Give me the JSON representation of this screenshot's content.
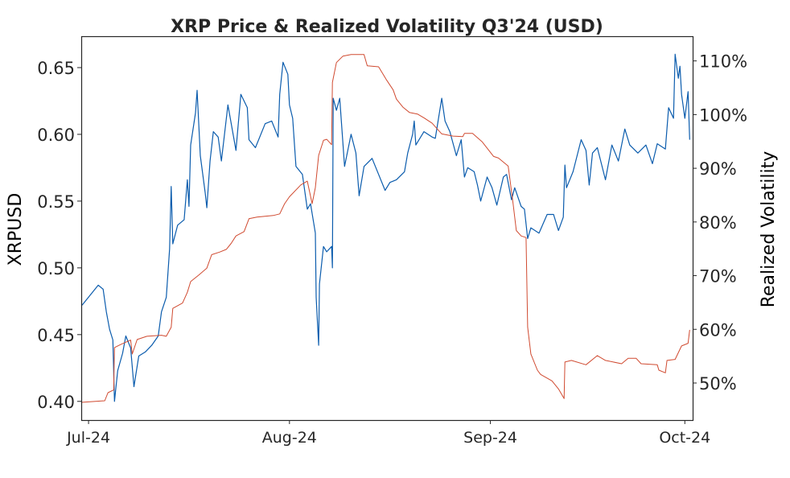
{
  "chart_data": {
    "type": "line",
    "title": "XRP Price & Realized Volatility Q3'24 (USD)",
    "ylabel": "XRPUSD",
    "y2label": "Realized Volatility",
    "xlim": [
      "2024-06-29T21:00",
      "2024-10-02T05:00"
    ],
    "ylim": [
      0.386,
      0.6735
    ],
    "y2lim": [
      43.1,
      114.6
    ],
    "grid": false,
    "x_ticks": [
      {
        "date": "2024-07-01T00:00",
        "label": "Jul-24"
      },
      {
        "date": "2024-08-01T00:00",
        "label": "Aug-24"
      },
      {
        "date": "2024-09-01T00:00",
        "label": "Sep-24"
      },
      {
        "date": "2024-10-01T00:00",
        "label": "Oct-24"
      }
    ],
    "y_ticks": [
      {
        "value": 0.4,
        "label": "0.40"
      },
      {
        "value": 0.45,
        "label": "0.45"
      },
      {
        "value": 0.5,
        "label": "0.50"
      },
      {
        "value": 0.55,
        "label": "0.55"
      },
      {
        "value": 0.6,
        "label": "0.60"
      },
      {
        "value": 0.65,
        "label": "0.65"
      }
    ],
    "y2_ticks": [
      {
        "value": 50,
        "label": "50%"
      },
      {
        "value": 60,
        "label": "60%"
      },
      {
        "value": 70,
        "label": "70%"
      },
      {
        "value": 80,
        "label": "80%"
      },
      {
        "value": 90,
        "label": "90%"
      },
      {
        "value": 100,
        "label": "100%"
      },
      {
        "value": 110,
        "label": "110%"
      }
    ],
    "series": [
      {
        "axis": "left",
        "color": "#0b5cad",
        "points": [
          [
            "2024-06-30T00:00",
            0.472
          ],
          [
            "2024-07-02T12:00",
            0.487
          ],
          [
            "2024-07-03T06:00",
            0.484
          ],
          [
            "2024-07-03T18:00",
            0.467
          ],
          [
            "2024-07-04T06:00",
            0.454
          ],
          [
            "2024-07-04T18:00",
            0.446
          ],
          [
            "2024-07-05T00:00",
            0.4
          ],
          [
            "2024-07-05T12:00",
            0.423
          ],
          [
            "2024-07-06T06:00",
            0.436
          ],
          [
            "2024-07-06T18:00",
            0.449
          ],
          [
            "2024-07-07T12:00",
            0.44
          ],
          [
            "2024-07-08T00:00",
            0.411
          ],
          [
            "2024-07-08T18:00",
            0.434
          ],
          [
            "2024-07-09T18:00",
            0.437
          ],
          [
            "2024-07-10T18:00",
            0.442
          ],
          [
            "2024-07-11T18:00",
            0.449
          ],
          [
            "2024-07-12T06:00",
            0.467
          ],
          [
            "2024-07-13T00:00",
            0.478
          ],
          [
            "2024-07-13T12:00",
            0.514
          ],
          [
            "2024-07-13T18:00",
            0.561
          ],
          [
            "2024-07-14T00:00",
            0.518
          ],
          [
            "2024-07-14T18:00",
            0.532
          ],
          [
            "2024-07-15T18:00",
            0.536
          ],
          [
            "2024-07-16T06:00",
            0.566
          ],
          [
            "2024-07-16T12:00",
            0.546
          ],
          [
            "2024-07-16T18:00",
            0.592
          ],
          [
            "2024-07-17T12:00",
            0.616
          ],
          [
            "2024-07-17T18:00",
            0.633
          ],
          [
            "2024-07-18T06:00",
            0.584
          ],
          [
            "2024-07-19T00:00",
            0.556
          ],
          [
            "2024-07-19T06:00",
            0.545
          ],
          [
            "2024-07-19T18:00",
            0.58
          ],
          [
            "2024-07-20T06:00",
            0.602
          ],
          [
            "2024-07-21T00:00",
            0.598
          ],
          [
            "2024-07-21T12:00",
            0.58
          ],
          [
            "2024-07-22T12:00",
            0.622
          ],
          [
            "2024-07-23T18:00",
            0.588
          ],
          [
            "2024-07-24T12:00",
            0.63
          ],
          [
            "2024-07-25T12:00",
            0.62
          ],
          [
            "2024-07-25T18:00",
            0.596
          ],
          [
            "2024-07-26T18:00",
            0.59
          ],
          [
            "2024-07-28T06:00",
            0.608
          ],
          [
            "2024-07-29T06:00",
            0.61
          ],
          [
            "2024-07-30T06:00",
            0.598
          ],
          [
            "2024-07-30T12:00",
            0.63
          ],
          [
            "2024-07-31T00:00",
            0.654
          ],
          [
            "2024-07-31T18:00",
            0.645
          ],
          [
            "2024-08-01T00:00",
            0.622
          ],
          [
            "2024-08-01T12:00",
            0.612
          ],
          [
            "2024-08-02T00:00",
            0.576
          ],
          [
            "2024-08-03T00:00",
            0.57
          ],
          [
            "2024-08-03T18:00",
            0.544
          ],
          [
            "2024-08-04T06:00",
            0.548
          ],
          [
            "2024-08-05T00:00",
            0.526
          ],
          [
            "2024-08-05T03:00",
            0.478
          ],
          [
            "2024-08-05T12:00",
            0.442
          ],
          [
            "2024-08-05T15:00",
            0.488
          ],
          [
            "2024-08-06T06:00",
            0.516
          ],
          [
            "2024-08-06T18:00",
            0.512
          ],
          [
            "2024-08-07T12:00",
            0.516
          ],
          [
            "2024-08-07T15:00",
            0.5
          ],
          [
            "2024-08-07T18:00",
            0.627
          ],
          [
            "2024-08-08T06:00",
            0.618
          ],
          [
            "2024-08-08T18:00",
            0.627
          ],
          [
            "2024-08-09T00:00",
            0.61
          ],
          [
            "2024-08-09T12:00",
            0.576
          ],
          [
            "2024-08-10T12:00",
            0.6
          ],
          [
            "2024-08-11T06:00",
            0.586
          ],
          [
            "2024-08-11T18:00",
            0.554
          ],
          [
            "2024-08-12T12:00",
            0.576
          ],
          [
            "2024-08-13T18:00",
            0.582
          ],
          [
            "2024-08-14T18:00",
            0.57
          ],
          [
            "2024-08-15T18:00",
            0.558
          ],
          [
            "2024-08-16T12:00",
            0.564
          ],
          [
            "2024-08-17T12:00",
            0.566
          ],
          [
            "2024-08-18T18:00",
            0.572
          ],
          [
            "2024-08-19T06:00",
            0.586
          ],
          [
            "2024-08-20T00:00",
            0.6
          ],
          [
            "2024-08-20T06:00",
            0.61
          ],
          [
            "2024-08-20T12:00",
            0.592
          ],
          [
            "2024-08-21T18:00",
            0.602
          ],
          [
            "2024-08-23T00:00",
            0.598
          ],
          [
            "2024-08-23T12:00",
            0.597
          ],
          [
            "2024-08-24T00:00",
            0.612
          ],
          [
            "2024-08-24T12:00",
            0.627
          ],
          [
            "2024-08-25T00:00",
            0.61
          ],
          [
            "2024-08-25T18:00",
            0.602
          ],
          [
            "2024-08-26T18:00",
            0.584
          ],
          [
            "2024-08-27T12:00",
            0.596
          ],
          [
            "2024-08-28T00:00",
            0.568
          ],
          [
            "2024-08-28T12:00",
            0.575
          ],
          [
            "2024-08-29T12:00",
            0.572
          ],
          [
            "2024-08-30T00:00",
            0.562
          ],
          [
            "2024-08-30T12:00",
            0.55
          ],
          [
            "2024-08-31T12:00",
            0.568
          ],
          [
            "2024-09-01T06:00",
            0.56
          ],
          [
            "2024-09-02T00:00",
            0.547
          ],
          [
            "2024-09-03T00:00",
            0.568
          ],
          [
            "2024-09-03T12:00",
            0.57
          ],
          [
            "2024-09-04T06:00",
            0.551
          ],
          [
            "2024-09-04T18:00",
            0.56
          ],
          [
            "2024-09-05T18:00",
            0.546
          ],
          [
            "2024-09-06T06:00",
            0.544
          ],
          [
            "2024-09-06T18:00",
            0.522
          ],
          [
            "2024-09-07T06:00",
            0.53
          ],
          [
            "2024-09-08T12:00",
            0.526
          ],
          [
            "2024-09-09T18:00",
            0.54
          ],
          [
            "2024-09-10T18:00",
            0.54
          ],
          [
            "2024-09-11T12:00",
            0.528
          ],
          [
            "2024-09-12T06:00",
            0.538
          ],
          [
            "2024-09-12T12:00",
            0.577
          ],
          [
            "2024-09-12T18:00",
            0.56
          ],
          [
            "2024-09-13T18:00",
            0.572
          ],
          [
            "2024-09-15T00:00",
            0.596
          ],
          [
            "2024-09-15T18:00",
            0.588
          ],
          [
            "2024-09-16T06:00",
            0.562
          ],
          [
            "2024-09-16T18:00",
            0.586
          ],
          [
            "2024-09-17T12:00",
            0.59
          ],
          [
            "2024-09-18T18:00",
            0.566
          ],
          [
            "2024-09-19T18:00",
            0.592
          ],
          [
            "2024-09-20T18:00",
            0.58
          ],
          [
            "2024-09-21T18:00",
            0.604
          ],
          [
            "2024-09-22T12:00",
            0.592
          ],
          [
            "2024-09-23T18:00",
            0.586
          ],
          [
            "2024-09-25T00:00",
            0.592
          ],
          [
            "2024-09-26T00:00",
            0.578
          ],
          [
            "2024-09-26T18:00",
            0.593
          ],
          [
            "2024-09-28T00:00",
            0.589
          ],
          [
            "2024-09-28T12:00",
            0.62
          ],
          [
            "2024-09-29T06:00",
            0.612
          ],
          [
            "2024-09-29T12:00",
            0.66
          ],
          [
            "2024-09-30T00:00",
            0.642
          ],
          [
            "2024-09-30T06:00",
            0.651
          ],
          [
            "2024-09-30T12:00",
            0.63
          ],
          [
            "2024-10-01T00:00",
            0.612
          ],
          [
            "2024-10-01T12:00",
            0.632
          ],
          [
            "2024-10-01T18:00",
            0.596
          ]
        ]
      },
      {
        "axis": "right",
        "color": "#d04a30",
        "points": [
          [
            "2024-06-29T21:00",
            46.4
          ],
          [
            "2024-07-03T12:00",
            46.7
          ],
          [
            "2024-07-04T00:00",
            48.2
          ],
          [
            "2024-07-04T21:00",
            48.7
          ],
          [
            "2024-07-05T00:00",
            56.6
          ],
          [
            "2024-07-06T00:00",
            57.2
          ],
          [
            "2024-07-07T12:00",
            58.0
          ],
          [
            "2024-07-07T18:00",
            55.4
          ],
          [
            "2024-07-08T12:00",
            58.1
          ],
          [
            "2024-07-10T00:00",
            58.7
          ],
          [
            "2024-07-12T06:00",
            58.9
          ],
          [
            "2024-07-13T00:00",
            58.7
          ],
          [
            "2024-07-13T18:00",
            60.4
          ],
          [
            "2024-07-14T00:00",
            63.9
          ],
          [
            "2024-07-15T12:00",
            64.9
          ],
          [
            "2024-07-16T06:00",
            66.9
          ],
          [
            "2024-07-16T18:00",
            68.9
          ],
          [
            "2024-07-18T00:00",
            70.1
          ],
          [
            "2024-07-19T06:00",
            71.4
          ],
          [
            "2024-07-20T00:00",
            73.9
          ],
          [
            "2024-07-21T06:00",
            74.4
          ],
          [
            "2024-07-22T06:00",
            74.9
          ],
          [
            "2024-07-23T00:00",
            76.0
          ],
          [
            "2024-07-23T18:00",
            77.4
          ],
          [
            "2024-07-25T00:00",
            78.2
          ],
          [
            "2024-07-25T18:00",
            80.6
          ],
          [
            "2024-07-27T00:00",
            80.9
          ],
          [
            "2024-07-29T12:00",
            81.2
          ],
          [
            "2024-07-30T12:00",
            81.5
          ],
          [
            "2024-07-31T06:00",
            83.4
          ],
          [
            "2024-08-01T00:00",
            84.7
          ],
          [
            "2024-08-02T18:00",
            86.9
          ],
          [
            "2024-08-03T18:00",
            87.6
          ],
          [
            "2024-08-04T12:00",
            83.4
          ],
          [
            "2024-08-05T00:00",
            86.4
          ],
          [
            "2024-08-05T12:00",
            92.4
          ],
          [
            "2024-08-06T06:00",
            95.2
          ],
          [
            "2024-08-06T18:00",
            95.4
          ],
          [
            "2024-08-07T12:00",
            94.4
          ],
          [
            "2024-08-07T15:00",
            106.0
          ],
          [
            "2024-08-08T06:00",
            109.7
          ],
          [
            "2024-08-09T06:00",
            110.9
          ],
          [
            "2024-08-10T12:00",
            111.2
          ],
          [
            "2024-08-12T12:00",
            111.2
          ],
          [
            "2024-08-13T00:00",
            109.1
          ],
          [
            "2024-08-14T18:00",
            108.9
          ],
          [
            "2024-08-16T00:00",
            106.4
          ],
          [
            "2024-08-17T00:00",
            104.6
          ],
          [
            "2024-08-17T12:00",
            102.9
          ],
          [
            "2024-08-18T12:00",
            101.4
          ],
          [
            "2024-08-19T12:00",
            100.4
          ],
          [
            "2024-08-20T18:00",
            100.1
          ],
          [
            "2024-08-21T18:00",
            99.4
          ],
          [
            "2024-08-23T00:00",
            98.4
          ],
          [
            "2024-08-24T12:00",
            96.4
          ],
          [
            "2024-08-26T06:00",
            96.0
          ],
          [
            "2024-08-27T18:00",
            95.9
          ],
          [
            "2024-08-28T00:00",
            96.5
          ],
          [
            "2024-08-29T06:00",
            96.5
          ],
          [
            "2024-08-30T18:00",
            94.9
          ],
          [
            "2024-09-01T12:00",
            92.2
          ],
          [
            "2024-09-02T06:00",
            91.9
          ],
          [
            "2024-09-03T18:00",
            90.4
          ],
          [
            "2024-09-04T12:00",
            83.4
          ],
          [
            "2024-09-05T00:00",
            78.4
          ],
          [
            "2024-09-05T18:00",
            77.4
          ],
          [
            "2024-09-06T12:00",
            77.1
          ],
          [
            "2024-09-06T18:00",
            60.4
          ],
          [
            "2024-09-07T06:00",
            55.4
          ],
          [
            "2024-09-08T06:00",
            52.4
          ],
          [
            "2024-09-08T18:00",
            51.6
          ],
          [
            "2024-09-10T12:00",
            50.4
          ],
          [
            "2024-09-11T12:00",
            48.9
          ],
          [
            "2024-09-12T09:00",
            47.1
          ],
          [
            "2024-09-12T12:00",
            53.9
          ],
          [
            "2024-09-13T12:00",
            54.2
          ],
          [
            "2024-09-15T18:00",
            53.4
          ],
          [
            "2024-09-17T12:00",
            55.1
          ],
          [
            "2024-09-18T18:00",
            54.2
          ],
          [
            "2024-09-21T06:00",
            53.6
          ],
          [
            "2024-09-22T06:00",
            54.6
          ],
          [
            "2024-09-23T12:00",
            54.6
          ],
          [
            "2024-09-24T06:00",
            53.6
          ],
          [
            "2024-09-26T18:00",
            53.4
          ],
          [
            "2024-09-27T00:00",
            52.4
          ],
          [
            "2024-09-28T00:00",
            51.9
          ],
          [
            "2024-09-28T06:00",
            54.2
          ],
          [
            "2024-09-29T12:00",
            54.4
          ],
          [
            "2024-09-30T12:00",
            56.9
          ],
          [
            "2024-10-01T12:00",
            57.4
          ],
          [
            "2024-10-01T18:00",
            59.9
          ]
        ]
      }
    ]
  }
}
